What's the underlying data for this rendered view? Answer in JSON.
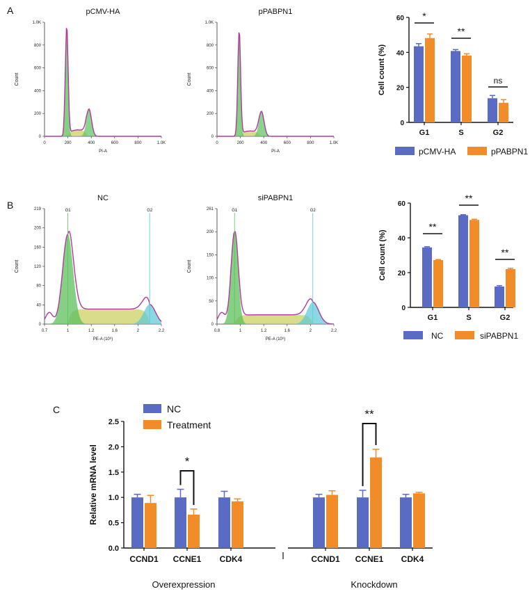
{
  "panels": {
    "a": "A",
    "b": "B",
    "c": "C"
  },
  "colors": {
    "nc": "#5a6bc4",
    "treat": "#f28c28",
    "trace": "#b03a9c",
    "g1": "#5cc05c",
    "s": "#c8cd5a",
    "g2": "#58c8d8"
  },
  "histograms": [
    {
      "title": "pCMV-HA",
      "ylabel": "Count",
      "xlabel": "PI-A",
      "xticks": [
        "0",
        "200",
        "400",
        "600",
        "800",
        "1.0K"
      ],
      "yticks": [
        "0",
        "200",
        "400",
        "600",
        "800",
        "1.0K"
      ]
    },
    {
      "title": "pPABPN1",
      "ylabel": "Count",
      "xlabel": "PI-A",
      "xticks": [
        "0",
        "200",
        "400",
        "600",
        "800",
        "1.0K"
      ],
      "yticks": [
        "0",
        "200",
        "400",
        "600",
        "800",
        "1.0K"
      ]
    },
    {
      "title": "NC",
      "ylabel": "Count",
      "xlabel": "PE-A (10⁶)",
      "xticks": [
        "0.7",
        "1",
        "1.2",
        "1.6",
        "2",
        "2.2"
      ],
      "yticks": [
        "0",
        "40",
        "80",
        "120",
        "160",
        "200",
        "219"
      ],
      "gate_g1": "G1",
      "gate_g2": "G2"
    },
    {
      "title": "siPABPN1",
      "ylabel": "Count",
      "xlabel": "PE-A (10⁶)",
      "xticks": [
        "0.8",
        "1",
        "1.2",
        "1.6",
        "2",
        "2.2"
      ],
      "yticks": [
        "0",
        "50",
        "100",
        "150",
        "200",
        "261"
      ],
      "gate_g1": "G1",
      "gate_g2": "G2"
    }
  ],
  "chart_data": [
    {
      "type": "bar",
      "id": "A-bar",
      "ylabel": "Cell count (%)",
      "categories": [
        "G1",
        "S",
        "G2"
      ],
      "ylim": [
        0,
        60
      ],
      "yticks": [
        "0",
        "20",
        "40",
        "60"
      ],
      "series": [
        {
          "name": "pCMV-HA",
          "values": [
            43.5,
            40.8,
            13.8
          ],
          "errors": [
            1.5,
            0.8,
            1.6
          ]
        },
        {
          "name": "pPABPN1",
          "values": [
            48.2,
            38.2,
            11.2
          ],
          "errors": [
            2.3,
            1.0,
            1.8
          ]
        }
      ],
      "significance": [
        "*",
        "**",
        "ns"
      ]
    },
    {
      "type": "bar",
      "id": "B-bar",
      "ylabel": "Cell count (%)",
      "categories": [
        "G1",
        "S",
        "G2"
      ],
      "ylim": [
        0,
        60
      ],
      "yticks": [
        "0",
        "20",
        "40",
        "60"
      ],
      "series": [
        {
          "name": "NC",
          "values": [
            34.5,
            53.0,
            12.0
          ],
          "errors": [
            0.4,
            0.3,
            0.5
          ]
        },
        {
          "name": "siPABPN1",
          "values": [
            27.2,
            50.3,
            22.0
          ],
          "errors": [
            0.3,
            0.4,
            0.5
          ]
        }
      ],
      "significance": [
        "**",
        "**",
        "**"
      ]
    },
    {
      "type": "bar",
      "id": "C-bar",
      "ylabel": "Relative mRNA level",
      "categories": [
        "CCND1",
        "CCNE1",
        "CDK4",
        "CCND1",
        "CCNE1",
        "CDK4"
      ],
      "groups": [
        "Overexpression",
        "Knockdown"
      ],
      "ylim": [
        0,
        2.5
      ],
      "yticks": [
        "0.0",
        "0.5",
        "1.0",
        "1.5",
        "2.0",
        "2.5"
      ],
      "series": [
        {
          "name": "NC",
          "values": [
            1.0,
            1.0,
            1.0,
            1.0,
            1.0,
            1.0
          ],
          "errors": [
            0.06,
            0.16,
            0.12,
            0.06,
            0.14,
            0.06
          ]
        },
        {
          "name": "Treatment",
          "values": [
            0.89,
            0.66,
            0.92,
            1.05,
            1.79,
            1.08
          ],
          "errors": [
            0.15,
            0.11,
            0.05,
            0.08,
            0.16,
            0.02
          ]
        }
      ],
      "significance": [
        {
          "category_index": 1,
          "label": "*"
        },
        {
          "category_index": 4,
          "label": "**"
        }
      ]
    }
  ]
}
